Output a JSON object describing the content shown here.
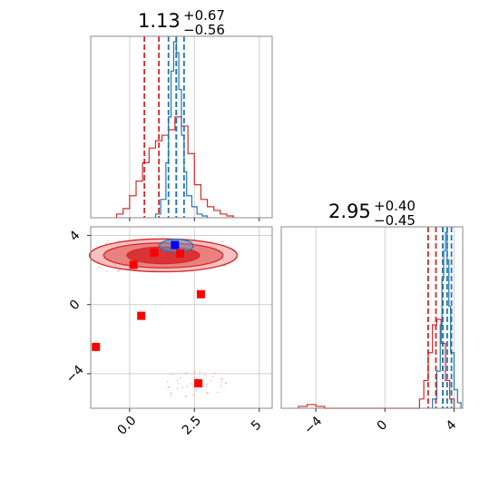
{
  "chart_data": [
    {
      "type": "histogram",
      "panel": "marginal-1",
      "title": {
        "main": "1.13",
        "upper": "+0.67",
        "lower": "−0.56"
      },
      "xlim": [
        -1.5,
        5.5
      ],
      "xticks": [
        0.0,
        2.5,
        5.0
      ],
      "grid": true,
      "series": [
        {
          "color": "#d62728",
          "bin_edges": [
            -0.5,
            -0.25,
            0.0,
            0.25,
            0.5,
            0.75,
            1.0,
            1.25,
            1.5,
            1.75,
            2.0,
            2.25,
            2.5,
            2.75,
            3.0,
            3.25,
            3.5,
            3.75,
            4.0
          ],
          "counts": [
            0.02,
            0.05,
            0.12,
            0.2,
            0.3,
            0.38,
            0.42,
            0.45,
            0.48,
            0.55,
            0.5,
            0.35,
            0.18,
            0.1,
            0.06,
            0.04,
            0.02,
            0.01
          ]
        },
        {
          "color": "#1f77b4",
          "bin_edges": [
            1.0,
            1.2,
            1.4,
            1.5,
            1.6,
            1.7,
            1.8,
            1.9,
            2.0,
            2.1,
            2.2,
            2.4,
            2.6,
            2.8,
            3.0
          ],
          "counts": [
            0.02,
            0.1,
            0.3,
            0.55,
            0.8,
            0.96,
            0.9,
            0.7,
            0.45,
            0.25,
            0.12,
            0.06,
            0.02,
            0.01
          ]
        }
      ],
      "quantile_lines": [
        {
          "color": "#d62728",
          "x": [
            0.57,
            1.13,
            1.8
          ]
        },
        {
          "color": "#1f77b4",
          "x": [
            1.5,
            1.8,
            2.1
          ]
        }
      ]
    },
    {
      "type": "scatter-contour",
      "panel": "joint",
      "xlim": [
        -1.5,
        5.5
      ],
      "ylim": [
        -6,
        4.5
      ],
      "xticks": [
        0.0,
        2.5,
        5.0
      ],
      "yticks": [
        -4,
        0,
        4
      ],
      "grid": true,
      "contours": [
        {
          "color": "#d62728",
          "cx": 1.3,
          "cy": 2.85,
          "levels": [
            [
              2.85,
              0.95
            ],
            [
              2.3,
              0.72
            ],
            [
              1.4,
              0.48
            ]
          ]
        },
        {
          "color": "#1f77b4",
          "cx": 1.8,
          "cy": 3.4,
          "levels": [
            [
              0.65,
              0.38
            ]
          ]
        }
      ],
      "red_points": [
        [
          -1.3,
          -2.45
        ],
        [
          0.15,
          2.3
        ],
        [
          0.45,
          -0.65
        ],
        [
          0.95,
          3.0
        ],
        [
          1.95,
          2.95
        ],
        [
          2.75,
          0.6
        ],
        [
          2.65,
          -4.55
        ]
      ],
      "blue_points": [
        [
          1.75,
          3.45
        ]
      ]
    },
    {
      "type": "histogram",
      "panel": "marginal-2",
      "title": {
        "main": "2.95",
        "upper": "+0.40",
        "lower": "−0.45"
      },
      "xlim": [
        -6,
        4.5
      ],
      "xticks": [
        -4,
        0,
        4
      ],
      "grid": true,
      "series": [
        {
          "color": "#d62728",
          "bin_edges": [
            -5.0,
            -4.5,
            -4.0,
            -3.5,
            2.0,
            2.25,
            2.5,
            2.75,
            3.0,
            3.25,
            3.5,
            3.75,
            4.0
          ],
          "counts": [
            0.01,
            0.02,
            0.01,
            0.0,
            0.05,
            0.15,
            0.3,
            0.45,
            0.48,
            0.35,
            0.15,
            0.05
          ]
        },
        {
          "color": "#1f77b4",
          "bin_edges": [
            2.75,
            3.0,
            3.2,
            3.3,
            3.4,
            3.5,
            3.6,
            3.7,
            3.8,
            4.0,
            4.2,
            4.4
          ],
          "counts": [
            0.05,
            0.2,
            0.45,
            0.7,
            0.85,
            0.95,
            0.8,
            0.55,
            0.3,
            0.1,
            0.03
          ]
        }
      ],
      "quantile_lines": [
        {
          "color": "#d62728",
          "x": [
            2.5,
            2.95,
            3.35
          ]
        },
        {
          "color": "#1f77b4",
          "x": [
            3.35,
            3.6,
            3.85
          ]
        }
      ]
    }
  ]
}
